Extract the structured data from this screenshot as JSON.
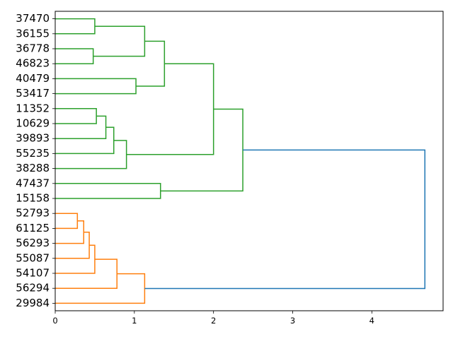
{
  "chart_data": {
    "type": "dendrogram",
    "orientation": "horizontal",
    "leaves": [
      "37470",
      "36155",
      "36778",
      "46823",
      "40479",
      "53417",
      "11352",
      "10629",
      "39893",
      "55235",
      "38288",
      "47437",
      "15158",
      "52793",
      "61125",
      "56293",
      "55087",
      "54107",
      "56294",
      "29984"
    ],
    "xlim": [
      0,
      4.9
    ],
    "xticks": [
      "0",
      "1",
      "2",
      "3",
      "4"
    ],
    "colors": {
      "cluster_green": "#2ca02c",
      "cluster_orange": "#ff7f0e",
      "above_threshold": "#1f77b4"
    },
    "links": [
      {
        "a": 0,
        "b": 1,
        "h": 0.5,
        "c": "green"
      },
      {
        "a": 2,
        "b": 3,
        "h": 0.48,
        "c": "green"
      },
      {
        "a": 20,
        "b": 21,
        "h": 1.13,
        "c": "green"
      },
      {
        "a": 4,
        "b": 5,
        "h": 1.02,
        "c": "green"
      },
      {
        "a": 22,
        "b": 23,
        "h": 1.38,
        "c": "green"
      },
      {
        "a": 6,
        "b": 7,
        "h": 0.52,
        "c": "green"
      },
      {
        "a": 25,
        "b": 8,
        "h": 0.64,
        "c": "green"
      },
      {
        "a": 26,
        "b": 9,
        "h": 0.74,
        "c": "green"
      },
      {
        "a": 27,
        "b": 10,
        "h": 0.9,
        "c": "green"
      },
      {
        "a": 24,
        "b": 28,
        "h": 2.0,
        "c": "green"
      },
      {
        "a": 11,
        "b": 12,
        "h": 1.33,
        "c": "green"
      },
      {
        "a": 29,
        "b": 30,
        "h": 2.37,
        "c": "green"
      },
      {
        "a": 13,
        "b": 14,
        "h": 0.28,
        "c": "orange"
      },
      {
        "a": 32,
        "b": 15,
        "h": 0.36,
        "c": "orange"
      },
      {
        "a": 33,
        "b": 16,
        "h": 0.43,
        "c": "orange"
      },
      {
        "a": 34,
        "b": 17,
        "h": 0.5,
        "c": "orange"
      },
      {
        "a": 35,
        "b": 18,
        "h": 0.78,
        "c": "orange"
      },
      {
        "a": 36,
        "b": 19,
        "h": 1.13,
        "c": "orange"
      },
      {
        "a": 31,
        "b": 37,
        "h": 4.67,
        "c": "blue"
      }
    ]
  }
}
